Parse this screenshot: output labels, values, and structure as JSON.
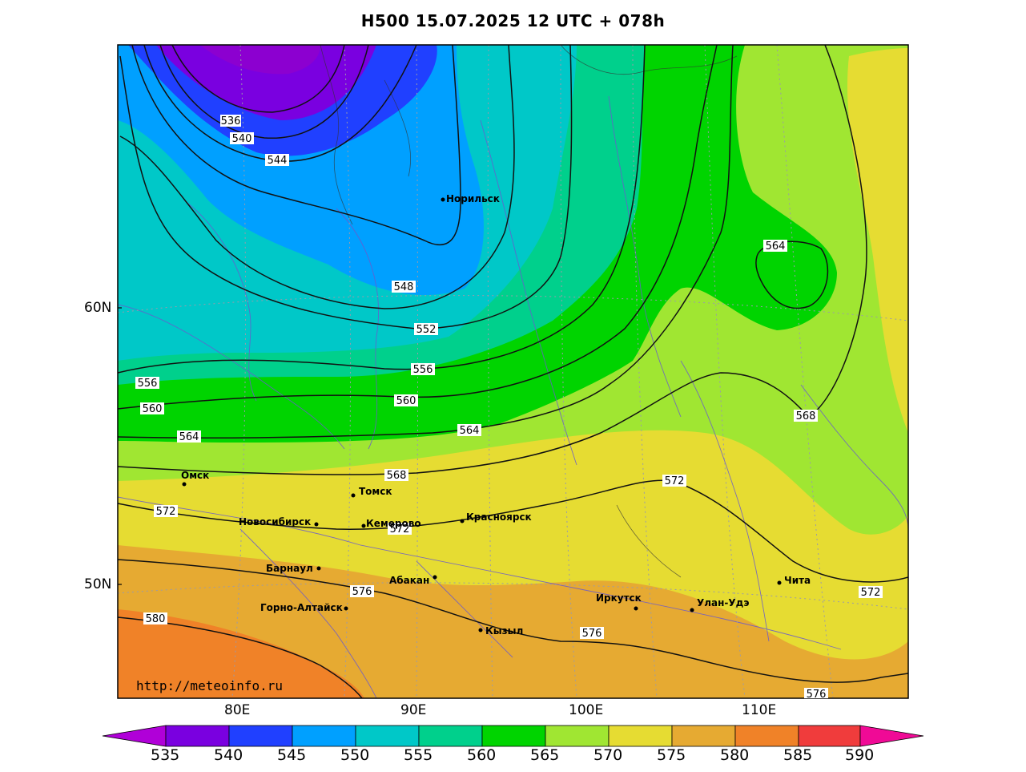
{
  "title": "H500  15.07.2025 12 UTC + 078h",
  "credit": "http://meteoinfo.ru",
  "lat_labels": [
    "60N",
    "50N"
  ],
  "lon_labels": [
    "80E",
    "90E",
    "100E",
    "110E"
  ],
  "colorbar": {
    "labels": [
      "535",
      "540",
      "545",
      "550",
      "555",
      "560",
      "565",
      "570",
      "575",
      "580",
      "585",
      "590"
    ],
    "colors": [
      "#b000d8",
      "#7a00e0",
      "#2040ff",
      "#00a0ff",
      "#00c8c8",
      "#00d08c",
      "#00d400",
      "#a0e632",
      "#e6dc32",
      "#e6aa32",
      "#f08228",
      "#f03c3c",
      "#f00a96"
    ]
  },
  "cities": [
    {
      "name": "Норильск"
    },
    {
      "name": "Омск"
    },
    {
      "name": "Томск"
    },
    {
      "name": "Новосибирск"
    },
    {
      "name": "Кемерово"
    },
    {
      "name": "Красноярск"
    },
    {
      "name": "Барнаул"
    },
    {
      "name": "Абакан"
    },
    {
      "name": "Горно-Алтайск"
    },
    {
      "name": "Кызыл"
    },
    {
      "name": "Иркутск"
    },
    {
      "name": "Улан-Удэ"
    },
    {
      "name": "Чита"
    }
  ],
  "contour_labels": [
    "536",
    "540",
    "544",
    "548",
    "552",
    "556",
    "556",
    "560",
    "560",
    "564",
    "564",
    "564",
    "568",
    "568",
    "572",
    "572",
    "572",
    "572",
    "576",
    "576",
    "576",
    "580"
  ]
}
